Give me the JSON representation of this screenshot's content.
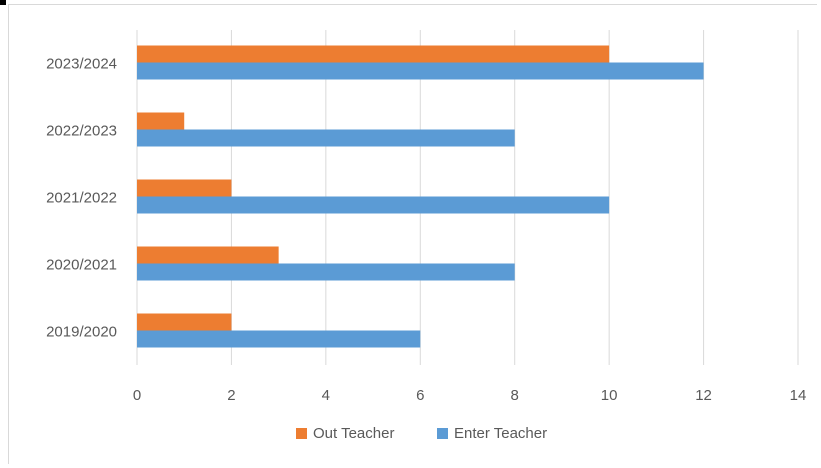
{
  "chart_data": {
    "type": "bar",
    "orientation": "horizontal",
    "categories": [
      "2019/2020",
      "2020/2021",
      "2021/2022",
      "2022/2023",
      "2023/2024"
    ],
    "series": [
      {
        "name": "Out Teacher",
        "values": [
          2,
          3,
          2,
          1,
          10
        ],
        "color": "#ed7d31"
      },
      {
        "name": "Enter Teacher",
        "values": [
          6,
          8,
          10,
          8,
          12
        ],
        "color": "#5b9bd5"
      }
    ],
    "xlim": [
      0,
      14
    ],
    "xticks": [
      "0",
      "2",
      "4",
      "6",
      "8",
      "10",
      "12",
      "14"
    ],
    "grid": true,
    "legend_position": "bottom",
    "title": "",
    "xlabel": "",
    "ylabel": ""
  }
}
